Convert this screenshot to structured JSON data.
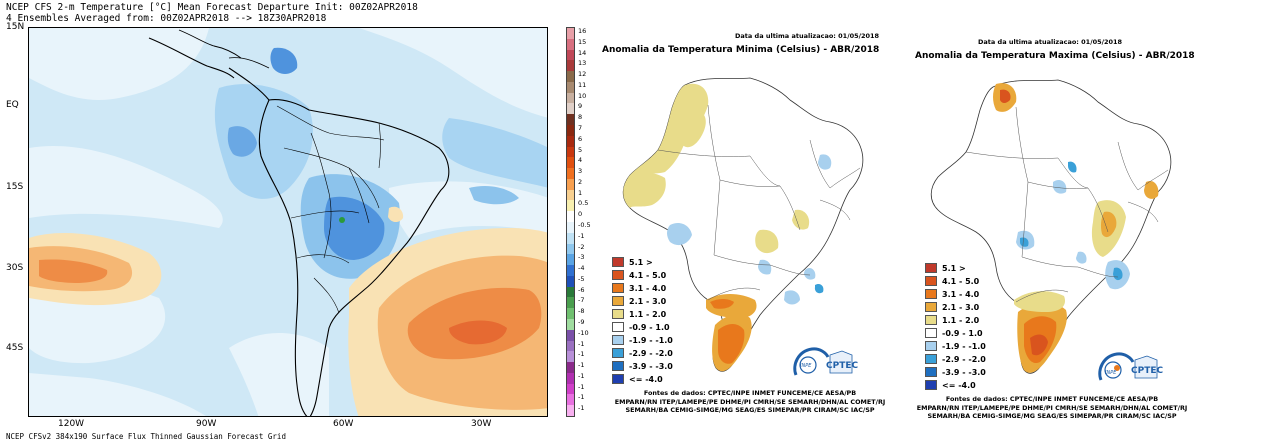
{
  "cfs": {
    "title_line1": "NCEP CFS 2-m Temperature [°C] Mean Forecast Departure Init: 00Z02APR2018",
    "title_line2": "4 Ensembles Averaged from: 00Z02APR2018 --> 18Z30APR2018",
    "footer": "NCEP CFSv2 384x190 Surface Flux Thinned Gaussian Forecast Grid",
    "lat_labels": [
      "15N",
      "EQ",
      "15S",
      "30S",
      "45S"
    ],
    "lon_labels": [
      "120W",
      "90W",
      "60W",
      "30W"
    ],
    "colorbar_labels": [
      "16",
      "15",
      "14",
      "13",
      "12",
      "11",
      "10",
      "9",
      "8",
      "7",
      "6",
      "5",
      "4",
      "3",
      "2",
      "1",
      "0.5",
      "0",
      "-0.5",
      "-1",
      "-2",
      "-3",
      "-4",
      "-5",
      "-6",
      "-7",
      "-8",
      "-9",
      "-10",
      "-1",
      "-1",
      "-1",
      "-1",
      "-1",
      "-1",
      "-1"
    ],
    "colorbar_colors": [
      "#e8a0a8",
      "#d87080",
      "#c04858",
      "#a83a3a",
      "#8a6a4a",
      "#a88a70",
      "#c8b0a0",
      "#e0d0c8",
      "#703020",
      "#8a2810",
      "#a82a10",
      "#c83810",
      "#e05010",
      "#f07020",
      "#f8a050",
      "#f8d090",
      "#f8f0b0",
      "#ffffff",
      "#e8f4fb",
      "#c0e2f5",
      "#90c8ee",
      "#5aa4e4",
      "#3070d0",
      "#1f50b8",
      "#2a7a3a",
      "#4a9e4e",
      "#70c070",
      "#a0dca0",
      "#7a50a8",
      "#9a70c0",
      "#b890d8",
      "#8a2a8a",
      "#b030b0",
      "#d040c8",
      "#e870e0",
      "#f8b0f0"
    ]
  },
  "min_map": {
    "date": "Data da ultima atualizacao: 01/05/2018",
    "title": "Anomalia da Temperatura Minima (Celsius) - ABR/2018"
  },
  "max_map": {
    "date": "Data da ultima atualizacao: 01/05/2018",
    "title": "Anomalia da Temperatura Maxima (Celsius) - ABR/2018"
  },
  "legend": {
    "items": [
      {
        "label": "5.1 >",
        "color": "#c0392b"
      },
      {
        "label": "4.1 - 5.0",
        "color": "#d9541e"
      },
      {
        "label": "3.1 - 4.0",
        "color": "#e8781c"
      },
      {
        "label": "2.1 - 3.0",
        "color": "#e9a83a"
      },
      {
        "label": "1.1 - 2.0",
        "color": "#e8dc8a"
      },
      {
        "label": "-0.9 - 1.0",
        "color": "#ffffff"
      },
      {
        "label": "-1.9 - -1.0",
        "color": "#a8d0ee"
      },
      {
        "label": "-2.9 - -2.0",
        "color": "#3aa0d8"
      },
      {
        "label": "-3.9 - -3.0",
        "color": "#1f6fc0"
      },
      {
        "label": "<= -4.0",
        "color": "#1f3fb0"
      }
    ]
  },
  "sources": {
    "line1": "Fontes de dados: CPTEC/INPE INMET FUNCEME/CE AESA/PB",
    "line2": "EMPARN/RN ITEP/LAMEPE/PE DHME/PI CMRH/SE SEMARH/DHN/AL COMET/RJ",
    "line3": "SEMARH/BA CEMIG-SIMGE/MG SEAG/ES SIMEPAR/PR CIRAM/SC IAC/SP"
  },
  "logo": {
    "inpe": "INPE",
    "cptec": "CPTEC"
  }
}
